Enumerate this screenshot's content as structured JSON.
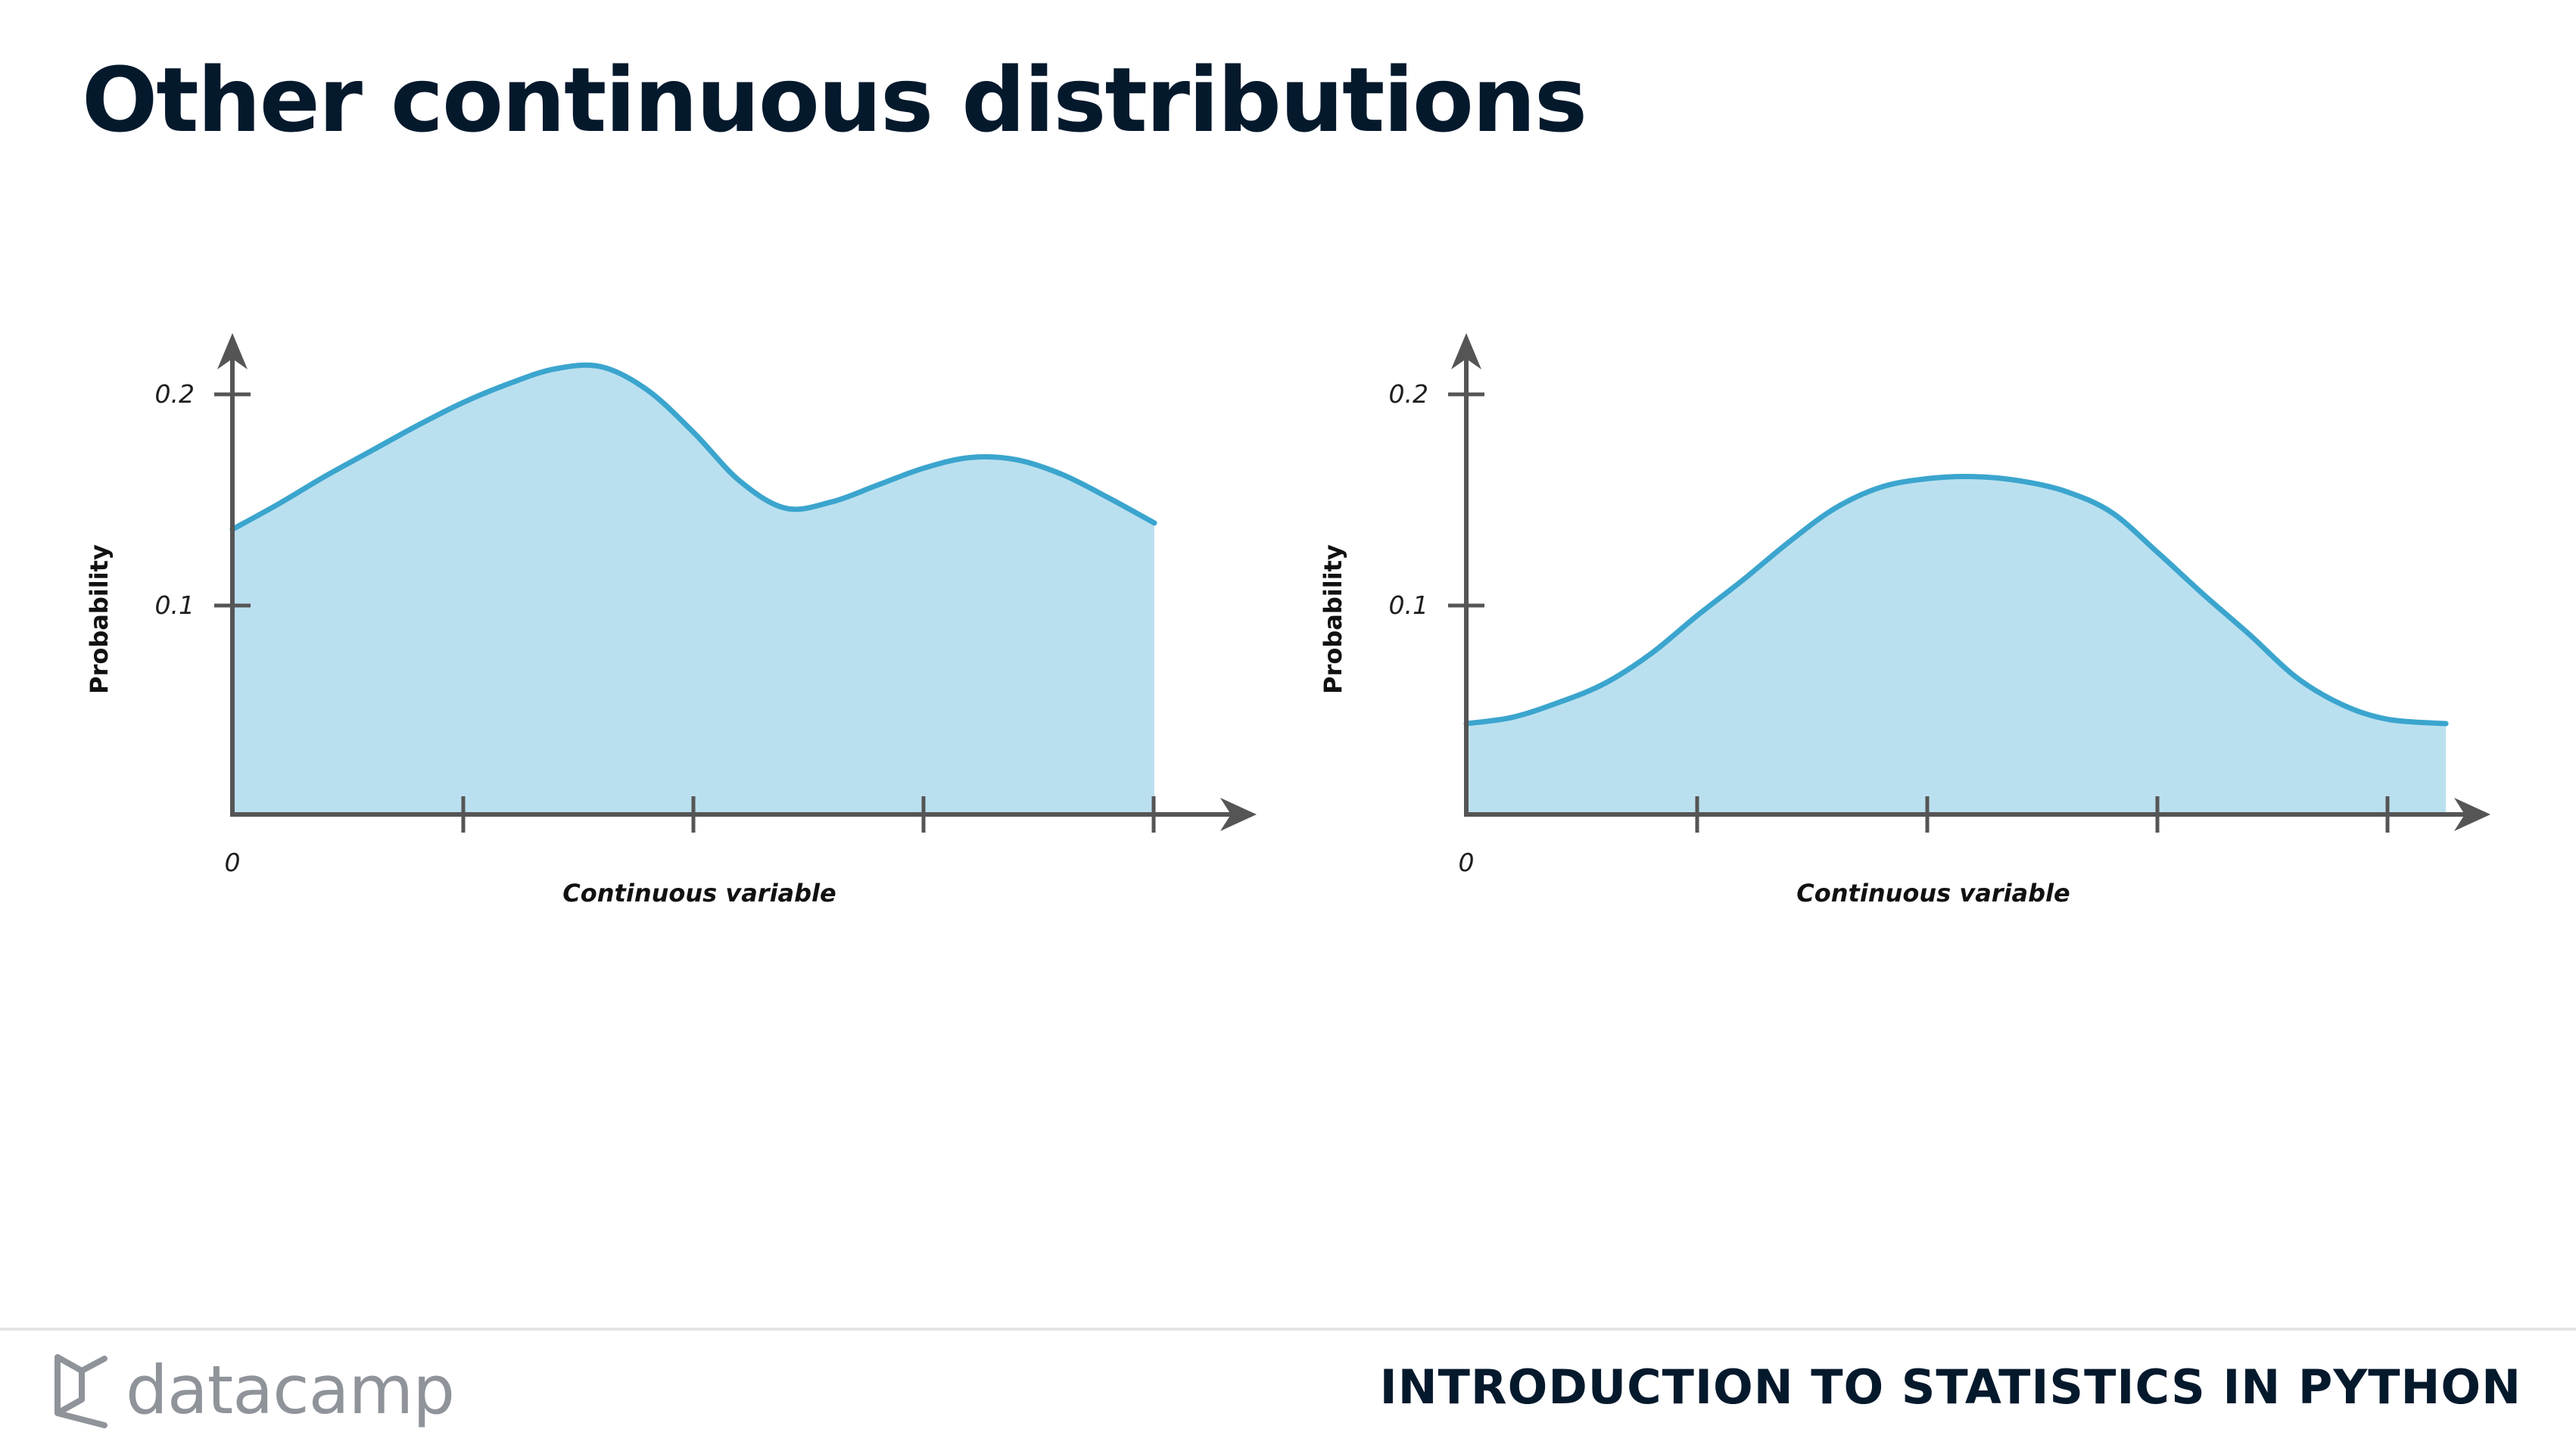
{
  "title": "Other continuous distributions",
  "footer": {
    "brand": "datacamp",
    "course": "INTRODUCTION TO STATISTICS IN PYTHON"
  },
  "colors": {
    "fill": "#bae0ef",
    "line": "#3ba5ce",
    "axis": "#555555"
  },
  "chart_data": [
    {
      "type": "area",
      "xlabel": "Continuous variable",
      "ylabel": "Probability",
      "ytick_labels": [
        "0.1",
        "0.2"
      ],
      "xtick_labels": [
        "0"
      ],
      "x": [
        0,
        0.2,
        0.4,
        0.6,
        0.8,
        1.0,
        1.2,
        1.4,
        1.6,
        1.8,
        2.0,
        2.2,
        2.4,
        2.6,
        2.8,
        3.0,
        3.2,
        3.4,
        3.6,
        3.8,
        4.0
      ],
      "y": [
        0.135,
        0.147,
        0.16,
        0.172,
        0.184,
        0.195,
        0.204,
        0.211,
        0.212,
        0.201,
        0.181,
        0.158,
        0.145,
        0.148,
        0.156,
        0.164,
        0.169,
        0.168,
        0.161,
        0.15,
        0.138
      ]
    },
    {
      "type": "area",
      "xlabel": "Continuous variable",
      "ylabel": "Probability",
      "ytick_labels": [
        "0.1",
        "0.2"
      ],
      "xtick_labels": [
        "0"
      ],
      "x": [
        0,
        0.2,
        0.4,
        0.6,
        0.8,
        1.0,
        1.2,
        1.4,
        1.6,
        1.8,
        2.0,
        2.2,
        2.4,
        2.6,
        2.8,
        3.0,
        3.2,
        3.4,
        3.6,
        3.8,
        4.0,
        4.25
      ],
      "y": [
        0.043,
        0.046,
        0.053,
        0.062,
        0.076,
        0.094,
        0.111,
        0.129,
        0.145,
        0.155,
        0.159,
        0.16,
        0.158,
        0.153,
        0.143,
        0.124,
        0.104,
        0.085,
        0.065,
        0.052,
        0.045,
        0.043
      ]
    }
  ]
}
